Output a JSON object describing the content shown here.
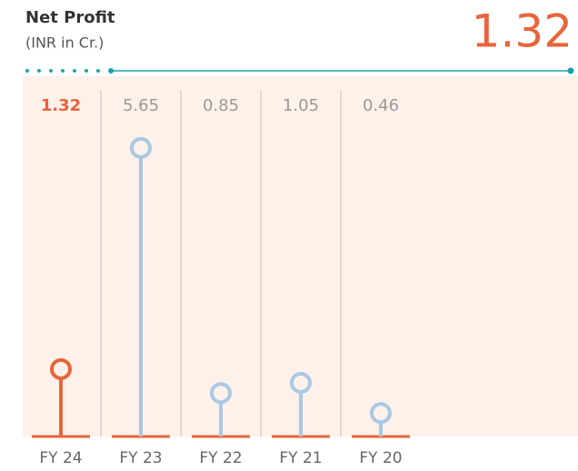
{
  "chart_data": {
    "type": "lollipop",
    "title": "Net Profit",
    "subtitle": "(INR in Cr.)",
    "categories": [
      "FY 24",
      "FY 23",
      "FY 22",
      "FY 21",
      "FY 20"
    ],
    "values": [
      1.32,
      5.65,
      0.85,
      1.05,
      0.46
    ],
    "colors": [
      "#e9643a",
      "#a9c8e4",
      "#a9c8e4",
      "#a9c8e4",
      "#a9c8e4"
    ]
  }
}
